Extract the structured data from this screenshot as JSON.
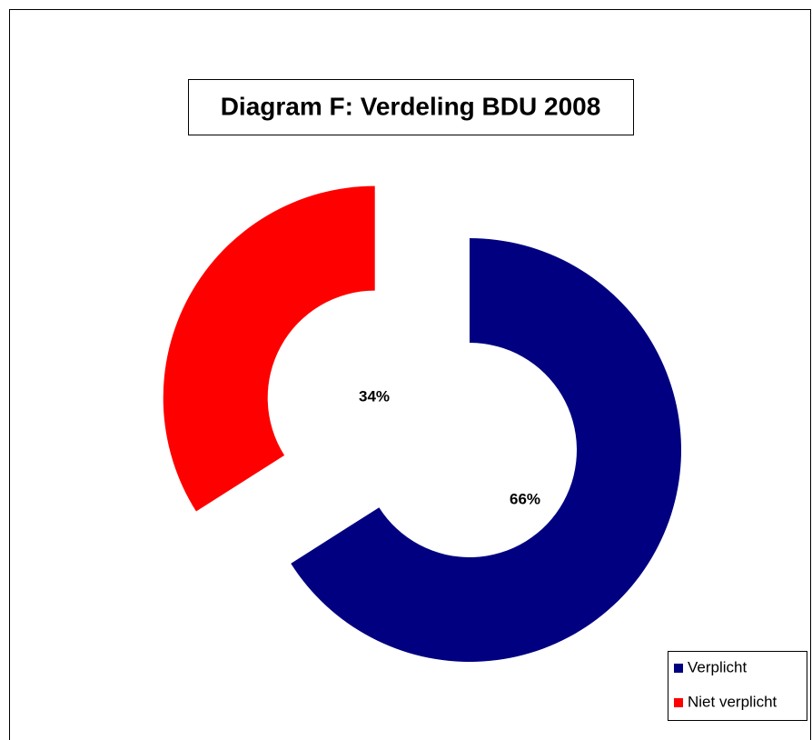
{
  "chart_data": {
    "type": "pie",
    "title": "Diagram F: Verdeling BDU 2008",
    "categories": [
      "Verplicht",
      "Niet verplicht"
    ],
    "values": [
      66,
      34
    ],
    "value_labels": [
      "66%",
      "34%"
    ],
    "colors": [
      "#000080",
      "#ff0000"
    ]
  }
}
